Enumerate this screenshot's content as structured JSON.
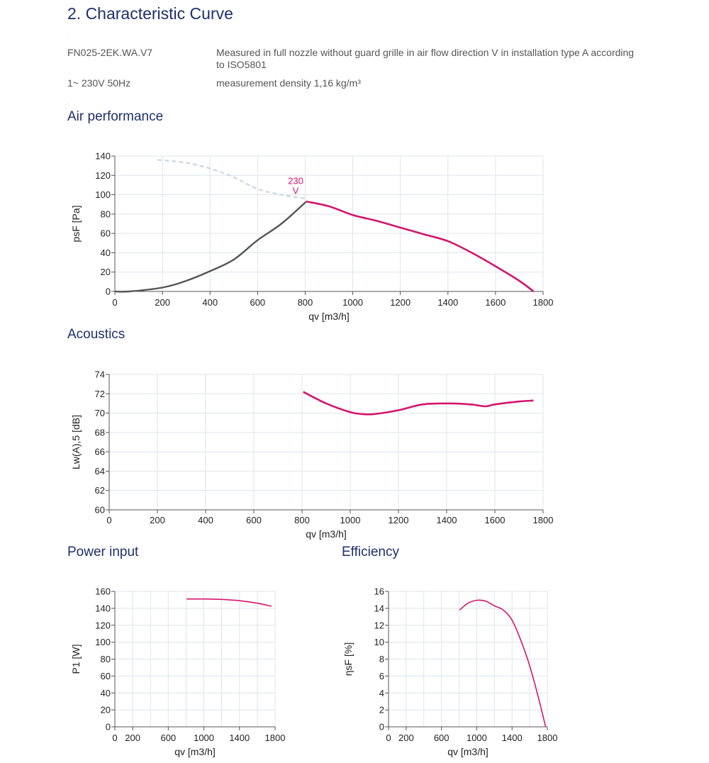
{
  "header": {
    "title": "2. Characteristic Curve",
    "model": "FN025-2EK.WA.V7",
    "measurement_desc": "Measured in full nozzle without guard grille in air flow direction V in installation type A according to ISO5801",
    "supply": "1~ 230V 50Hz",
    "density": "measurement density 1,16 kg/m³"
  },
  "sections": {
    "air": "Air performance",
    "acoustics": "Acoustics",
    "power": "Power input",
    "efficiency": "Efficiency"
  },
  "colors": {
    "curve": "#d4166f",
    "unstable": "#555555",
    "dashed": "#ccd6e3",
    "grid": "#dfe4ea",
    "heading": "#1f2f6b"
  },
  "chart_data": [
    {
      "id": "air",
      "type": "line",
      "xlabel": "qv [m3/h]",
      "ylabel": "psF [Pa]",
      "xlim": [
        0,
        1800
      ],
      "ylim": [
        0,
        140
      ],
      "xticks": [
        0,
        200,
        400,
        600,
        800,
        1000,
        1200,
        1400,
        1600,
        1800
      ],
      "yticks": [
        0,
        20,
        40,
        60,
        80,
        100,
        120,
        140
      ],
      "annotation": "230\nV",
      "series": [
        {
          "style": "dashed",
          "x": [
            180,
            300,
            400,
            500,
            600,
            700,
            800
          ],
          "y": [
            136,
            133,
            127,
            118,
            106,
            100,
            96
          ]
        },
        {
          "style": "dark",
          "x": [
            0,
            60,
            200,
            300,
            400,
            500,
            600,
            700,
            805
          ],
          "y": [
            0,
            0,
            4,
            11,
            21,
            33,
            53,
            70,
            93
          ]
        },
        {
          "style": "main",
          "x": [
            805,
            900,
            1000,
            1100,
            1200,
            1300,
            1400,
            1500,
            1600,
            1700,
            1760
          ],
          "y": [
            93,
            88,
            79,
            73,
            66,
            59,
            52,
            40,
            26,
            11,
            0
          ]
        }
      ]
    },
    {
      "id": "acoustics",
      "type": "line",
      "xlabel": "qv [m3/h]",
      "ylabel": "Lw(A),5 [dB]",
      "xlim": [
        0,
        1800
      ],
      "ylim": [
        60,
        74
      ],
      "xticks": [
        0,
        200,
        400,
        600,
        800,
        1000,
        1200,
        1400,
        1600,
        1800
      ],
      "yticks": [
        60,
        62,
        64,
        66,
        68,
        70,
        72,
        74
      ],
      "series": [
        {
          "style": "main",
          "x": [
            805,
            900,
            1000,
            1050,
            1100,
            1200,
            1300,
            1400,
            1500,
            1560,
            1600,
            1700,
            1760
          ],
          "y": [
            72.2,
            71,
            70.1,
            69.9,
            69.9,
            70.3,
            70.9,
            71.0,
            70.9,
            70.7,
            70.9,
            71.2,
            71.3
          ]
        }
      ]
    },
    {
      "id": "power",
      "type": "line",
      "xlabel": "qv [m3/h]",
      "ylabel": "P1 [W]",
      "xlim": [
        0,
        1800
      ],
      "ylim": [
        0,
        160
      ],
      "xticks": [
        0,
        200,
        600,
        1000,
        1400,
        1800
      ],
      "yticks": [
        0,
        20,
        40,
        60,
        80,
        100,
        120,
        140,
        160
      ],
      "series": [
        {
          "style": "main",
          "x": [
            805,
            1000,
            1200,
            1400,
            1600,
            1760
          ],
          "y": [
            151,
            151,
            150.5,
            149,
            146,
            142.5
          ]
        }
      ]
    },
    {
      "id": "efficiency",
      "type": "line",
      "xlabel": "qv [m3/h]",
      "ylabel": "ηsF [%]",
      "xlim": [
        0,
        1800
      ],
      "ylim": [
        0,
        16
      ],
      "xticks": [
        0,
        200,
        600,
        1000,
        1400,
        1800
      ],
      "yticks": [
        0,
        2,
        4,
        6,
        8,
        10,
        12,
        14,
        16
      ],
      "series": [
        {
          "style": "main",
          "x": [
            805,
            900,
            1000,
            1100,
            1200,
            1300,
            1400,
            1500,
            1600,
            1700,
            1780
          ],
          "y": [
            13.8,
            14.6,
            14.95,
            14.85,
            14.3,
            13.8,
            12.6,
            10.2,
            7.2,
            3.4,
            0
          ]
        }
      ]
    }
  ]
}
